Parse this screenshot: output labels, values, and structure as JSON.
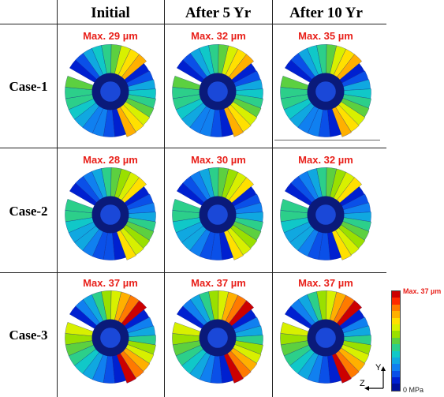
{
  "columns": [
    "Initial",
    "After 5 Yr",
    "After 10 Yr"
  ],
  "rows": [
    {
      "label": "Case-1",
      "max": [
        "Max. 29 µm",
        "Max. 32 µm",
        "Max. 35 µm"
      ]
    },
    {
      "label": "Case-2",
      "max": [
        "Max. 28 µm",
        "Max. 30 µm",
        "Max. 32 µm"
      ]
    },
    {
      "label": "Case-3",
      "max": [
        "Max. 37 µm",
        "Max. 37 µm",
        "Max. 37 µm"
      ]
    }
  ],
  "legend": {
    "max_label": "Max. 37 µm",
    "min_label": "0 MPa",
    "colors": [
      "#cc0000",
      "#ff2a00",
      "#ff7a00",
      "#ffb000",
      "#ffe000",
      "#d8f000",
      "#9ae000",
      "#5cd040",
      "#2ccf8a",
      "#10c8c8",
      "#10a8e0",
      "#1080f0",
      "#0a50e8",
      "#0020d0",
      "#00109a"
    ]
  },
  "axes": {
    "y": "Y",
    "z": "Z"
  },
  "colors": {
    "accent_red": "#e8201a",
    "rim_blue": "#1a48d8",
    "inner_navy": "#0a1a7a"
  }
}
